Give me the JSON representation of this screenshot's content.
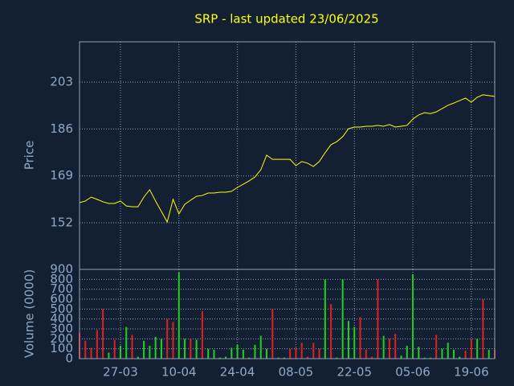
{
  "chart_data": [
    {
      "type": "line",
      "title": "SRP - last updated 23/06/2025",
      "ylabel": "Price",
      "color": "#ffff00",
      "ylim": [
        135.1,
        217.6
      ],
      "yticks": [
        152,
        169,
        186,
        203
      ],
      "grid": true,
      "values": [
        159.3,
        159.9,
        161.3,
        160.5,
        159.6,
        159.0,
        159.0,
        159.9,
        158.1,
        157.8,
        157.8,
        161.3,
        164.0,
        159.9,
        156.1,
        152.3,
        160.5,
        155.2,
        158.7,
        160.2,
        161.6,
        161.9,
        162.8,
        162.8,
        163.1,
        163.1,
        163.4,
        164.8,
        166.0,
        167.2,
        168.6,
        171.2,
        176.5,
        175.0,
        175.0,
        175.0,
        175.0,
        172.7,
        174.2,
        173.6,
        172.4,
        174.2,
        177.4,
        180.3,
        181.4,
        183.2,
        186.1,
        186.7,
        186.7,
        187.0,
        187.0,
        187.3,
        187.0,
        187.6,
        186.7,
        187.0,
        187.3,
        189.6,
        191.1,
        191.9,
        191.6,
        192.2,
        193.4,
        194.6,
        195.4,
        196.3,
        197.2,
        195.7,
        197.5,
        198.4,
        198.1,
        197.8
      ]
    },
    {
      "type": "bar",
      "ylabel": "Volume (0000)",
      "ylim": [
        0,
        900
      ],
      "yticks": [
        0,
        100,
        200,
        300,
        400,
        500,
        600,
        700,
        800,
        900
      ],
      "grid": true,
      "categories": [
        null,
        null,
        null,
        null,
        null,
        null,
        null,
        "27-03",
        null,
        null,
        null,
        null,
        null,
        null,
        null,
        null,
        null,
        "10-04",
        null,
        null,
        null,
        null,
        null,
        null,
        null,
        null,
        null,
        "24-04",
        null,
        null,
        null,
        null,
        null,
        null,
        null,
        null,
        null,
        "08-05",
        null,
        null,
        null,
        null,
        null,
        null,
        null,
        null,
        null,
        "22-05",
        null,
        null,
        null,
        null,
        null,
        null,
        null,
        null,
        null,
        "05-06",
        null,
        null,
        null,
        null,
        null,
        null,
        null,
        null,
        null,
        "19-06",
        null,
        null,
        null,
        null
      ],
      "values": [
        260,
        180,
        110,
        290,
        500,
        60,
        190,
        130,
        320,
        240,
        20,
        180,
        130,
        220,
        200,
        400,
        370,
        870,
        200,
        200,
        190,
        480,
        100,
        90,
        10,
        20,
        110,
        140,
        90,
        10,
        140,
        230,
        100,
        500,
        10,
        10,
        100,
        110,
        160,
        20,
        160,
        100,
        800,
        550,
        10,
        800,
        380,
        320,
        420,
        90,
        20,
        800,
        230,
        200,
        250,
        30,
        130,
        850,
        120,
        10,
        10,
        240,
        100,
        160,
        90,
        20,
        80,
        200,
        200,
        600,
        90,
        90
      ],
      "colors": [
        "#e02020",
        "#e02020",
        "#e02020",
        "#e02020",
        "#e02020",
        "#20d020",
        "#e02020",
        "#20d020",
        "#20d020",
        "#e02020",
        "#20d020",
        "#20d020",
        "#20d020",
        "#20d020",
        "#20d020",
        "#e02020",
        "#e02020",
        "#20d020",
        "#20d020",
        "#e02020",
        "#20d020",
        "#e02020",
        "#20d020",
        "#20d020",
        "#20d020",
        "#20d020",
        "#20d020",
        "#20d020",
        "#20d020",
        "#20d020",
        "#20d020",
        "#20d020",
        "#20d020",
        "#e02020",
        "#20d020",
        "#20d020",
        "#e02020",
        "#e02020",
        "#e02020",
        "#e02020",
        "#e02020",
        "#e02020",
        "#20d020",
        "#e02020",
        "#20d020",
        "#20d020",
        "#20d020",
        "#20d020",
        "#e02020",
        "#e02020",
        "#e02020",
        "#e02020",
        "#20d020",
        "#e02020",
        "#e02020",
        "#20d020",
        "#20d020",
        "#20d020",
        "#20d020",
        "#20d020",
        "#20d020",
        "#e02020",
        "#20d020",
        "#20d020",
        "#20d020",
        "#20d020",
        "#e02020",
        "#e02020",
        "#20d020",
        "#e02020",
        "#20d020",
        "#e02020"
      ]
    }
  ]
}
